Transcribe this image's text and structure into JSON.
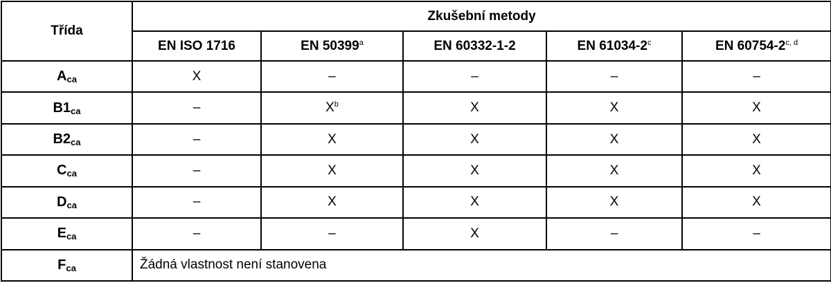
{
  "header": {
    "class_label": "Třída",
    "group_label": "Zkušební metody",
    "methods": [
      {
        "name": "EN ISO 1716",
        "sup": ""
      },
      {
        "name": "EN 50399",
        "sup": "a"
      },
      {
        "name": "EN 60332-1-2",
        "sup": ""
      },
      {
        "name": "EN 61034-2",
        "sup": "c"
      },
      {
        "name": "EN 60754-2",
        "sup": "c, d"
      }
    ]
  },
  "rows": [
    {
      "cls": "A",
      "sub": "ca",
      "cells": [
        {
          "v": "X",
          "sup": ""
        },
        {
          "v": "–",
          "sup": ""
        },
        {
          "v": "–",
          "sup": ""
        },
        {
          "v": "–",
          "sup": ""
        },
        {
          "v": "–",
          "sup": ""
        }
      ]
    },
    {
      "cls": "B1",
      "sub": "ca",
      "cells": [
        {
          "v": "–",
          "sup": ""
        },
        {
          "v": "X",
          "sup": "b"
        },
        {
          "v": "X",
          "sup": ""
        },
        {
          "v": "X",
          "sup": ""
        },
        {
          "v": "X",
          "sup": ""
        }
      ]
    },
    {
      "cls": "B2",
      "sub": "ca",
      "cells": [
        {
          "v": "–",
          "sup": ""
        },
        {
          "v": "X",
          "sup": ""
        },
        {
          "v": "X",
          "sup": ""
        },
        {
          "v": "X",
          "sup": ""
        },
        {
          "v": "X",
          "sup": ""
        }
      ]
    },
    {
      "cls": "C",
      "sub": "ca",
      "cells": [
        {
          "v": "–",
          "sup": ""
        },
        {
          "v": "X",
          "sup": ""
        },
        {
          "v": "X",
          "sup": ""
        },
        {
          "v": "X",
          "sup": ""
        },
        {
          "v": "X",
          "sup": ""
        }
      ]
    },
    {
      "cls": "D",
      "sub": "ca",
      "cells": [
        {
          "v": "–",
          "sup": ""
        },
        {
          "v": "X",
          "sup": ""
        },
        {
          "v": "X",
          "sup": ""
        },
        {
          "v": "X",
          "sup": ""
        },
        {
          "v": "X",
          "sup": ""
        }
      ]
    },
    {
      "cls": "E",
      "sub": "ca",
      "cells": [
        {
          "v": "–",
          "sup": ""
        },
        {
          "v": "–",
          "sup": ""
        },
        {
          "v": "X",
          "sup": ""
        },
        {
          "v": "–",
          "sup": ""
        },
        {
          "v": "–",
          "sup": ""
        }
      ]
    }
  ],
  "last_row": {
    "cls": "F",
    "sub": "ca",
    "note": "Žádná vlastnost není stanovena"
  }
}
